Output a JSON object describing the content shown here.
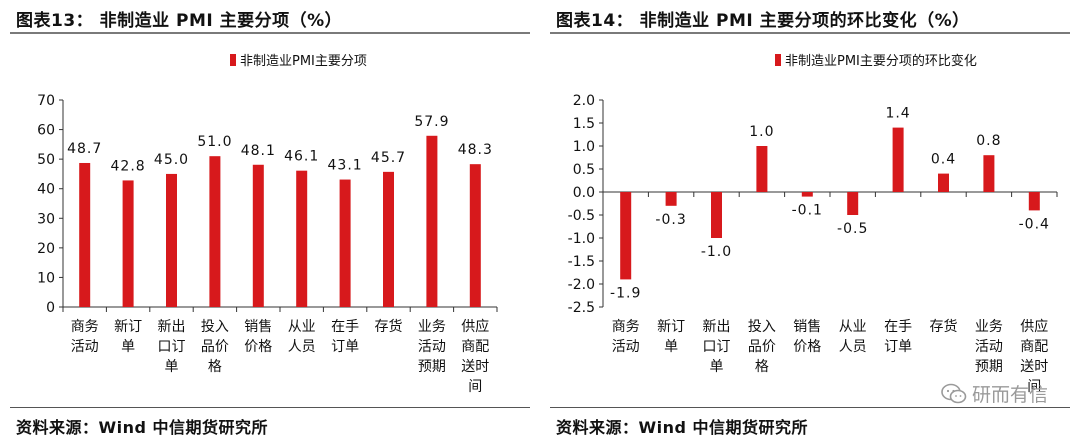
{
  "colors": {
    "bar": "#d7191c",
    "axis": "#333333",
    "text": "#111111"
  },
  "watermark": {
    "text": "研而有信"
  },
  "chart_data": [
    {
      "type": "bar",
      "title": "图表13： 非制造业 PMI 主要分项（%）",
      "legend": "非制造业PMI主要分项",
      "legend_position": "top-center",
      "categories": [
        [
          "商务",
          "活动"
        ],
        [
          "新订",
          "单"
        ],
        [
          "新出",
          "口订",
          "单"
        ],
        [
          "投入",
          "品价",
          "格"
        ],
        [
          "销售",
          "价格"
        ],
        [
          "从业",
          "人员"
        ],
        [
          "在手",
          "订单"
        ],
        [
          "存货"
        ],
        [
          "业务",
          "活动",
          "预期"
        ],
        [
          "供应",
          "商配",
          "送时",
          "间"
        ]
      ],
      "values": [
        48.7,
        42.8,
        45.0,
        51.0,
        48.1,
        46.1,
        43.1,
        45.7,
        57.9,
        48.3
      ],
      "value_labels": [
        "48.7",
        "42.8",
        "45.0",
        "51.0",
        "48.1",
        "46.1",
        "43.1",
        "45.7",
        "57.9",
        "48.3"
      ],
      "ylim": [
        0,
        70
      ],
      "yticks": [
        0,
        10,
        20,
        30,
        40,
        50,
        60,
        70
      ],
      "ytick_labels": [
        "0",
        "10",
        "20",
        "30",
        "40",
        "50",
        "60",
        "70"
      ],
      "source": "资料来源：Wind 中信期货研究所"
    },
    {
      "type": "bar",
      "title": "图表14： 非制造业 PMI 主要分项的环比变化（%）",
      "legend": "非制造业PMI主要分项的环比变化",
      "legend_position": "top-center",
      "categories": [
        [
          "商务",
          "活动"
        ],
        [
          "新订",
          "单"
        ],
        [
          "新出",
          "口订",
          "单"
        ],
        [
          "投入",
          "品价",
          "格"
        ],
        [
          "销售",
          "价格"
        ],
        [
          "从业",
          "人员"
        ],
        [
          "在手",
          "订单"
        ],
        [
          "存货"
        ],
        [
          "业务",
          "活动",
          "预期"
        ],
        [
          "供应",
          "商配",
          "送时",
          "间"
        ]
      ],
      "values": [
        -1.9,
        -0.3,
        -1.0,
        1.0,
        -0.1,
        -0.5,
        1.4,
        0.4,
        0.8,
        -0.4
      ],
      "value_labels": [
        "-1.9",
        "-0.3",
        "-1.0",
        "1.0",
        "-0.1",
        "-0.5",
        "1.4",
        "0.4",
        "0.8",
        "-0.4"
      ],
      "ylim": [
        -2.5,
        2.0
      ],
      "yticks": [
        -2.5,
        -2.0,
        -1.5,
        -1.0,
        -0.5,
        0.0,
        0.5,
        1.0,
        1.5,
        2.0
      ],
      "ytick_labels": [
        "-2.5",
        "-2.0",
        "-1.5",
        "-1.0",
        "-0.5",
        "0.0",
        "0.5",
        "1.0",
        "1.5",
        "2.0"
      ],
      "source": "资料来源：Wind 中信期货研究所"
    }
  ]
}
